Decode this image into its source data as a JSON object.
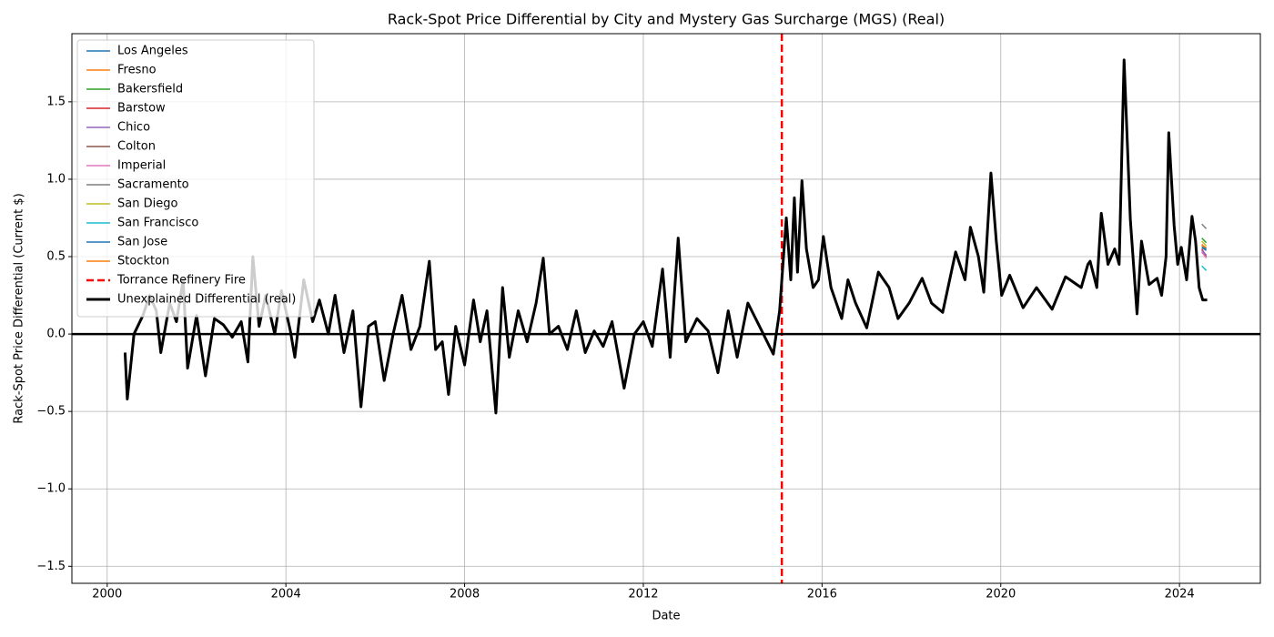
{
  "chart_data": {
    "type": "line",
    "title": "Rack-Spot Price Differential by City and Mystery Gas Surcharge (MGS) (Real)",
    "x_label": "Date",
    "y_label": "Rack-Spot Price Differential (Current $)",
    "xlim": [
      1999.21,
      2025.81
    ],
    "ylim": [
      -1.61,
      1.94
    ],
    "xticks": [
      2000,
      2004,
      2008,
      2012,
      2016,
      2020,
      2024
    ],
    "yticks": [
      {
        "value": -1.5,
        "label": "−1.5"
      },
      {
        "value": -1.0,
        "label": "−1.0"
      },
      {
        "value": -0.5,
        "label": "−0.5"
      },
      {
        "value": 0,
        "label": "0.0"
      },
      0.5,
      {
        "value": 1.0,
        "label": "1.0"
      },
      1.5
    ],
    "grid": true,
    "legend": "upper left",
    "axhline": {
      "y": 0,
      "color": "#000000"
    },
    "series": [
      {
        "name": "Los Angeles",
        "color": "#1f77b4",
        "x": [
          2024.5,
          2024.6
        ],
        "values": [
          0.56,
          0.54
        ]
      },
      {
        "name": "Fresno",
        "color": "#ff7f0e",
        "x": [
          2024.5,
          2024.6
        ],
        "values": [
          0.58,
          0.55
        ]
      },
      {
        "name": "Bakersfield",
        "color": "#2ca02c",
        "x": [
          2024.5,
          2024.6
        ],
        "values": [
          0.62,
          0.59
        ]
      },
      {
        "name": "Barstow",
        "color": "#d62728",
        "x": [
          2024.5,
          2024.6
        ],
        "values": [
          0.55,
          0.5
        ]
      },
      {
        "name": "Chico",
        "color": "#9467bd",
        "x": [
          2024.5,
          2024.6
        ],
        "values": [
          0.54,
          0.51
        ]
      },
      {
        "name": "Colton",
        "color": "#8c564b",
        "x": [
          2024.5,
          2024.6
        ],
        "values": [
          0.53,
          0.5
        ]
      },
      {
        "name": "Imperial",
        "color": "#e377c2",
        "x": [
          2024.5,
          2024.6
        ],
        "values": [
          0.53,
          0.49
        ]
      },
      {
        "name": "Sacramento",
        "color": "#7f7f7f",
        "x": [
          2024.5,
          2024.6
        ],
        "values": [
          0.71,
          0.68
        ]
      },
      {
        "name": "San Diego",
        "color": "#bcbd22",
        "x": [
          2024.5,
          2024.6
        ],
        "values": [
          0.6,
          0.57
        ]
      },
      {
        "name": "San Francisco",
        "color": "#17becf",
        "x": [
          2024.5,
          2024.6
        ],
        "values": [
          0.44,
          0.41
        ]
      },
      {
        "name": "San Jose",
        "color": "#1f77b4",
        "x": [
          2024.5,
          2024.6
        ],
        "values": [
          0.57,
          0.55
        ]
      },
      {
        "name": "Stockton",
        "color": "#ff7f0e",
        "x": [
          2024.5,
          2024.6
        ],
        "values": [
          0.57,
          0.56
        ]
      },
      {
        "name": "Torrance Refinery Fire",
        "color": "#ff0000",
        "linestyle": "dashed",
        "vline": 2015.1
      },
      {
        "name": "Unexplained Differential (real)",
        "color": "#000000",
        "linewidth": 3,
        "x": [
          2000.4,
          2000.45,
          2000.6,
          2000.8,
          2000.95,
          2001.1,
          2001.2,
          2001.4,
          2001.55,
          2001.7,
          2001.8,
          2002.0,
          2002.2,
          2002.4,
          2002.6,
          2002.8,
          2003.0,
          2003.15,
          2003.26,
          2003.4,
          2003.55,
          2003.75,
          2003.9,
          2004.1,
          2004.2,
          2004.4,
          2004.6,
          2004.75,
          2004.95,
          2005.1,
          2005.3,
          2005.5,
          2005.68,
          2005.85,
          2006.0,
          2006.2,
          2006.4,
          2006.6,
          2006.8,
          2007.0,
          2007.21,
          2007.35,
          2007.5,
          2007.64,
          2007.8,
          2008.0,
          2008.2,
          2008.35,
          2008.5,
          2008.7,
          2008.85,
          2009.0,
          2009.2,
          2009.4,
          2009.6,
          2009.76,
          2009.9,
          2010.1,
          2010.3,
          2010.5,
          2010.7,
          2010.9,
          2011.1,
          2011.3,
          2011.57,
          2011.8,
          2012.0,
          2012.2,
          2012.43,
          2012.6,
          2012.78,
          2012.95,
          2013.2,
          2013.45,
          2013.67,
          2013.9,
          2014.1,
          2014.34,
          2014.6,
          2014.91,
          2015.05,
          2015.2,
          2015.3,
          2015.38,
          2015.45,
          2015.55,
          2015.65,
          2015.8,
          2015.92,
          2016.03,
          2016.2,
          2016.44,
          2016.58,
          2016.75,
          2017.0,
          2017.26,
          2017.5,
          2017.7,
          2017.95,
          2018.24,
          2018.45,
          2018.7,
          2018.99,
          2019.2,
          2019.32,
          2019.5,
          2019.62,
          2019.78,
          2019.9,
          2020.02,
          2020.2,
          2020.5,
          2020.8,
          2021.15,
          2021.45,
          2021.8,
          2021.95,
          2022.0,
          2022.15,
          2022.25,
          2022.4,
          2022.55,
          2022.65,
          2022.76,
          2022.9,
          2023.05,
          2023.15,
          2023.32,
          2023.5,
          2023.6,
          2023.7,
          2023.76,
          2023.88,
          2023.96,
          2024.04,
          2024.16,
          2024.28,
          2024.36,
          2024.44,
          2024.52,
          2024.62
        ],
        "values": [
          -0.12,
          -0.42,
          0.0,
          0.12,
          0.25,
          0.15,
          -0.12,
          0.2,
          0.08,
          0.35,
          -0.22,
          0.12,
          -0.27,
          0.1,
          0.06,
          -0.02,
          0.08,
          -0.18,
          0.5,
          0.05,
          0.25,
          0.0,
          0.28,
          0.02,
          -0.15,
          0.35,
          0.08,
          0.22,
          0.0,
          0.25,
          -0.12,
          0.15,
          -0.47,
          0.05,
          0.08,
          -0.3,
          0.0,
          0.25,
          -0.1,
          0.05,
          0.47,
          -0.1,
          -0.05,
          -0.39,
          0.05,
          -0.2,
          0.22,
          -0.05,
          0.15,
          -0.51,
          0.3,
          -0.15,
          0.15,
          -0.05,
          0.2,
          0.49,
          0.0,
          0.05,
          -0.1,
          0.15,
          -0.12,
          0.02,
          -0.08,
          0.08,
          -0.35,
          0.0,
          0.08,
          -0.08,
          0.42,
          -0.15,
          0.62,
          -0.05,
          0.1,
          0.02,
          -0.25,
          0.15,
          -0.15,
          0.2,
          0.05,
          -0.13,
          0.15,
          0.75,
          0.35,
          0.88,
          0.4,
          0.99,
          0.55,
          0.3,
          0.35,
          0.63,
          0.3,
          0.1,
          0.35,
          0.2,
          0.04,
          0.4,
          0.3,
          0.1,
          0.2,
          0.36,
          0.2,
          0.14,
          0.53,
          0.35,
          0.69,
          0.5,
          0.27,
          1.04,
          0.6,
          0.25,
          0.38,
          0.17,
          0.3,
          0.16,
          0.37,
          0.3,
          0.45,
          0.47,
          0.3,
          0.78,
          0.45,
          0.55,
          0.45,
          1.77,
          0.74,
          0.13,
          0.6,
          0.32,
          0.36,
          0.25,
          0.5,
          1.3,
          0.7,
          0.45,
          0.56,
          0.35,
          0.76,
          0.6,
          0.3,
          0.22,
          0.22
        ]
      }
    ]
  }
}
